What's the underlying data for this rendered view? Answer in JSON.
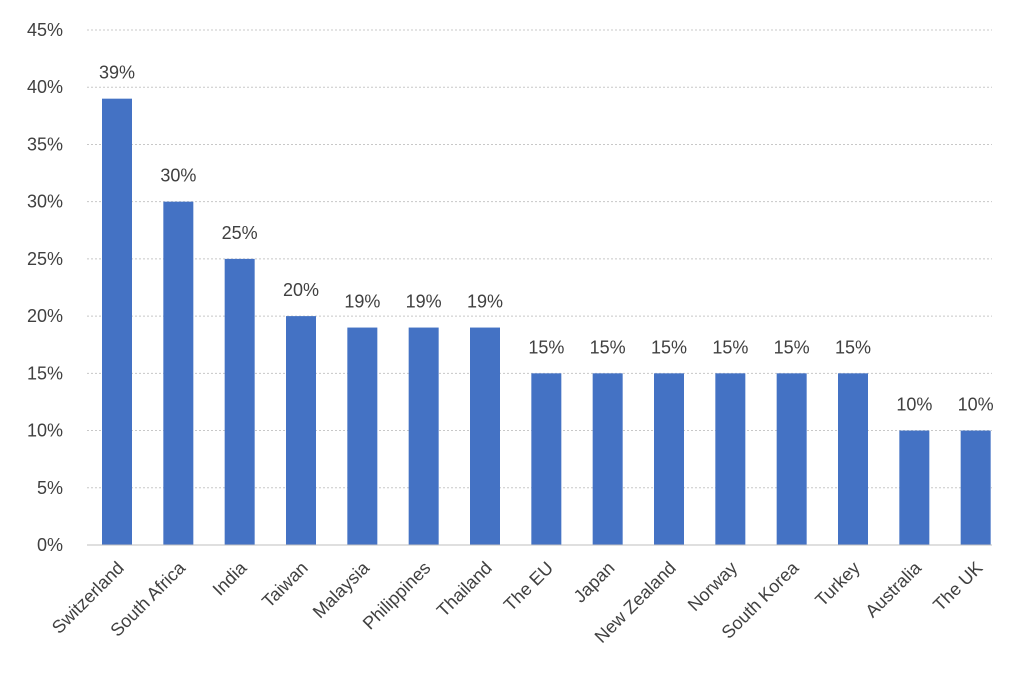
{
  "chart_data": {
    "type": "bar",
    "categories": [
      "Switzerland",
      "South Africa",
      "India",
      "Taiwan",
      "Malaysia",
      "Philippines",
      "Thailand",
      "The EU",
      "Japan",
      "New Zealand",
      "Norway",
      "South Korea",
      "Turkey",
      "Australia",
      "The UK"
    ],
    "values": [
      39,
      30,
      25,
      20,
      19,
      19,
      19,
      15,
      15,
      15,
      15,
      15,
      15,
      10,
      10
    ],
    "data_labels": [
      "39%",
      "30%",
      "25%",
      "20%",
      "19%",
      "19%",
      "19%",
      "15%",
      "15%",
      "15%",
      "15%",
      "15%",
      "15%",
      "10%",
      "10%"
    ],
    "ylim": [
      0,
      45
    ],
    "yticks": [
      0,
      5,
      10,
      15,
      20,
      25,
      30,
      35,
      40,
      45
    ],
    "ytick_labels": [
      "0%",
      "5%",
      "10%",
      "15%",
      "20%",
      "25%",
      "30%",
      "35%",
      "40%",
      "45%"
    ],
    "grid": true,
    "legend": "none",
    "bar_color": "#4472c4"
  }
}
